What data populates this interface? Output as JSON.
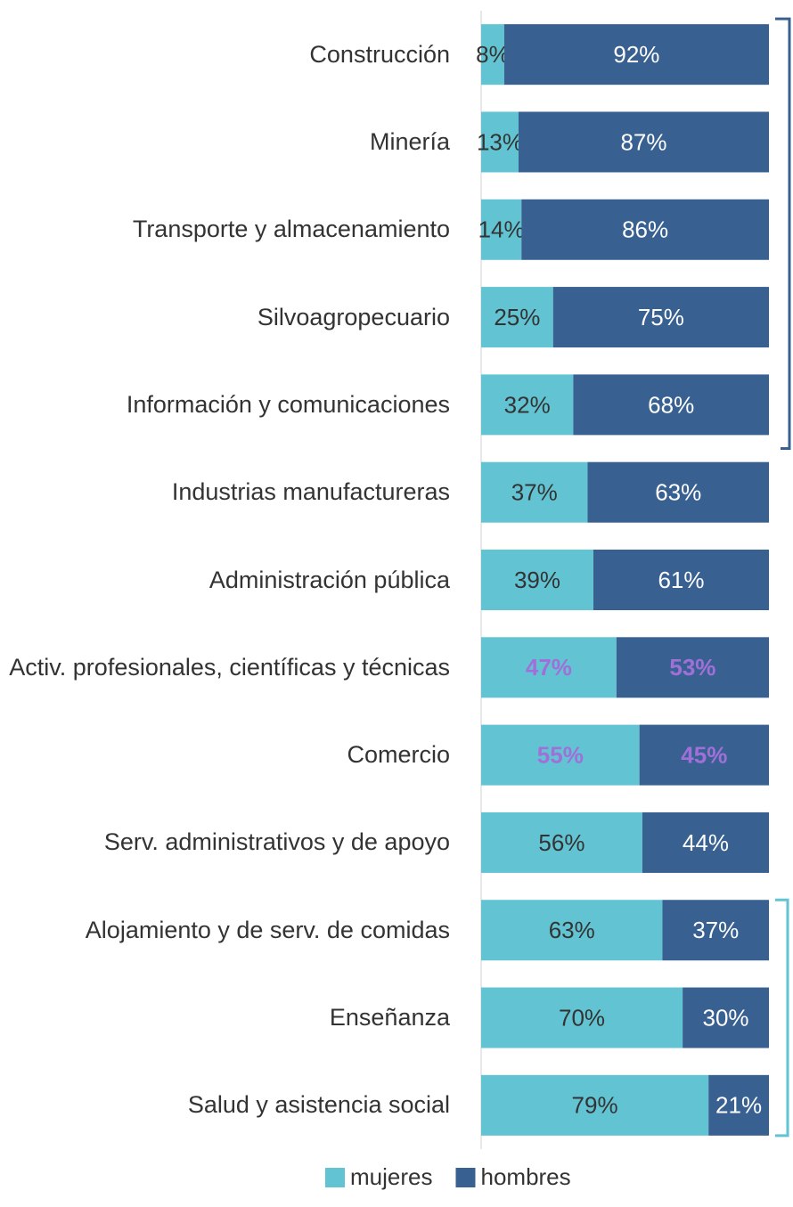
{
  "chart_data": {
    "type": "stacked_bar_horizontal",
    "categories": [
      "Construcción",
      "Minería",
      "Transporte y almacenamiento",
      "Silvoagropecuario",
      "Información y comunicaciones",
      "Industrias manufactureras",
      "Administración pública",
      "Activ. profesionales, científicas y técnicas",
      "Comercio",
      "Serv. administrativos y de apoyo",
      "Alojamiento y de serv. de comidas",
      "Enseñanza",
      "Salud y asistencia social"
    ],
    "series": [
      {
        "name": "mujeres",
        "color": "#62c3d3",
        "label_color": "#333333",
        "values": [
          8,
          13,
          14,
          25,
          32,
          37,
          39,
          47,
          55,
          56,
          63,
          70,
          79
        ],
        "value_labels": [
          "8%",
          "13%",
          "14%",
          "25%",
          "32%",
          "37%",
          "39%",
          "47%",
          "55%",
          "56%",
          "63%",
          "70%",
          "79%"
        ]
      },
      {
        "name": "hombres",
        "color": "#386192",
        "label_color": "#ffffff",
        "values": [
          92,
          87,
          86,
          75,
          68,
          63,
          61,
          53,
          45,
          44,
          37,
          30,
          21
        ],
        "value_labels": [
          "92%",
          "87%",
          "86%",
          "75%",
          "68%",
          "63%",
          "61%",
          "53%",
          "45%",
          "44%",
          "37%",
          "30%",
          "21%"
        ]
      }
    ],
    "highlight": {
      "categories": [
        "Activ. profesionales, científicas y técnicas",
        "Comercio"
      ],
      "color": "#a070d8"
    },
    "xlim": [
      0,
      100
    ],
    "legend": "bottom"
  }
}
